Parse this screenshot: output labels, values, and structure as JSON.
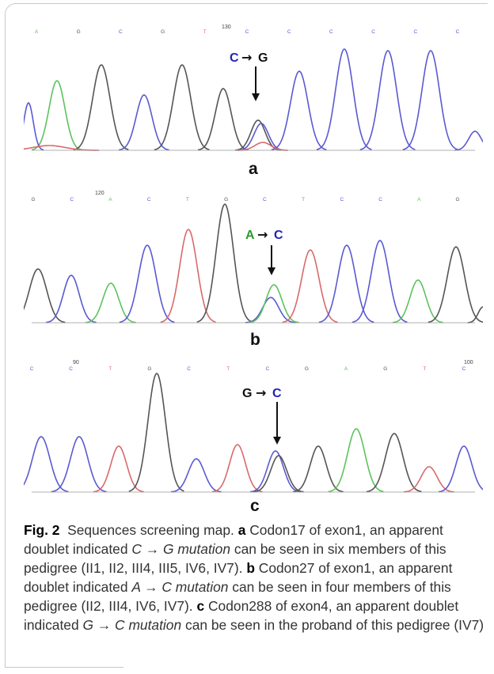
{
  "panels": [
    {
      "label": "a",
      "position_number": "130",
      "bases": [
        "A",
        "G",
        "C",
        "G",
        "T",
        "C",
        "C",
        "C",
        "C",
        "C",
        "C"
      ],
      "mutation": {
        "from": "C",
        "arrow": "→",
        "to": "G"
      }
    },
    {
      "label": "b",
      "position_number": "120",
      "bases": [
        "G",
        "C",
        "A",
        "C",
        "T",
        "G",
        "C",
        "T",
        "C",
        "C",
        "A",
        "G"
      ],
      "mutation": {
        "from": "A",
        "arrow": "→",
        "to": "C"
      }
    },
    {
      "label": "c",
      "position_number_left": "90",
      "position_number_right": "100",
      "bases": [
        "C",
        "C",
        "T",
        "G",
        "C",
        "T",
        "C",
        "G",
        "A",
        "G",
        "T",
        "C"
      ],
      "mutation": {
        "from": "G",
        "arrow": "→",
        "to": "C"
      }
    }
  ],
  "caption": {
    "fig_label": "Fig. 2",
    "title": "Sequences screening map.",
    "a_label": "a",
    "a_text_1": "Codon17 of exon1, an apparent doublet indicated",
    "a_mutation": "C → G mutation",
    "a_text_2": "can be seen in six members of this pedigree (II1, II2, III4, III5, IV6, IV7).",
    "b_label": "b",
    "b_text_1": "Codon27 of exon1, an apparent doublet indicated",
    "b_mutation": "A → C mutation",
    "b_text_2": "can be seen in four members of this pedigree (II2, III4, IV6, IV7).",
    "c_label": "c",
    "c_text_1": "Codon288 of exon4, an apparent doublet indicated",
    "c_mutation": "G → C mutation",
    "c_text_2": "can be seen in the proband of this pedigree (IV7)"
  },
  "colors": {
    "A": "#5cc35c",
    "C": "#5a5ad2",
    "G": "#555555",
    "T": "#d86a6a",
    "blue_text": "#2222bb",
    "green_text": "#2e9a2e",
    "black_text": "#111111"
  }
}
